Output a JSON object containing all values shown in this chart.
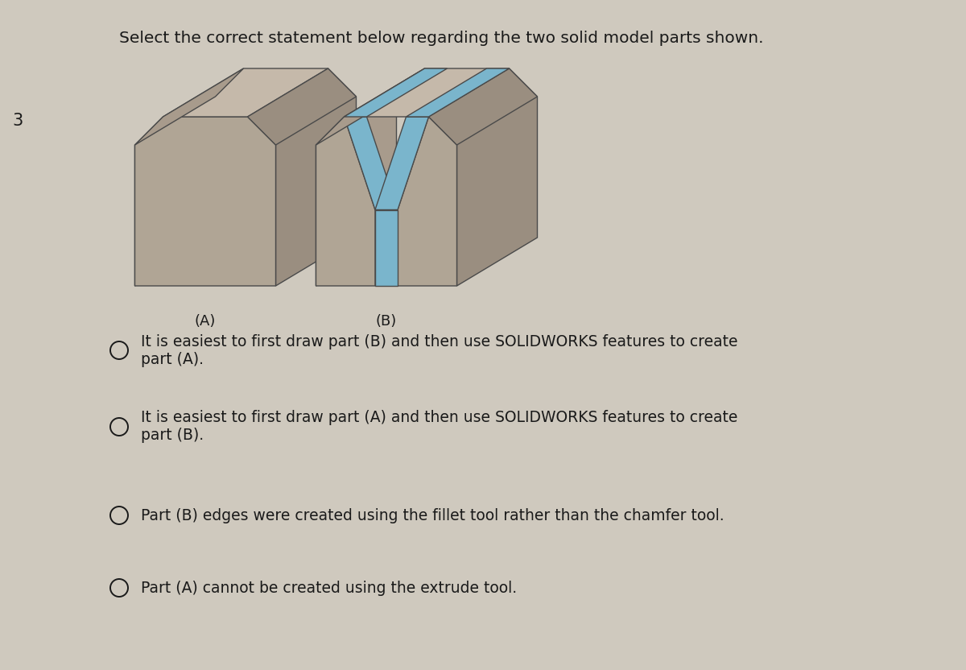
{
  "bg_color": "#cfc9be",
  "question_number": "3",
  "title": "Select the correct statement below regarding the two solid model parts shown.",
  "label_A": "(A)",
  "label_B": "(B)",
  "options": [
    "It is easiest to first draw part (B) and then use SOLIDWORKS features to create\npart (A).",
    "It is easiest to first draw part (A) and then use SOLIDWORKS features to create\npart (B).",
    "Part (B) edges were created using the fillet tool rather than the chamfer tool.",
    "Part (A) cannot be created using the extrude tool."
  ],
  "tan_front": "#b0a595",
  "tan_top": "#c5b9aa",
  "tan_right": "#9a8e80",
  "tan_left_side": "#a89b8c",
  "blue_face": "#7ab5cc",
  "blue_side": "#5fa0ba",
  "edge_color": "#4a4a4a",
  "text_color": "#1a1a1a",
  "title_fontsize": 14.5,
  "option_fontsize": 13.5,
  "number_fontsize": 15
}
